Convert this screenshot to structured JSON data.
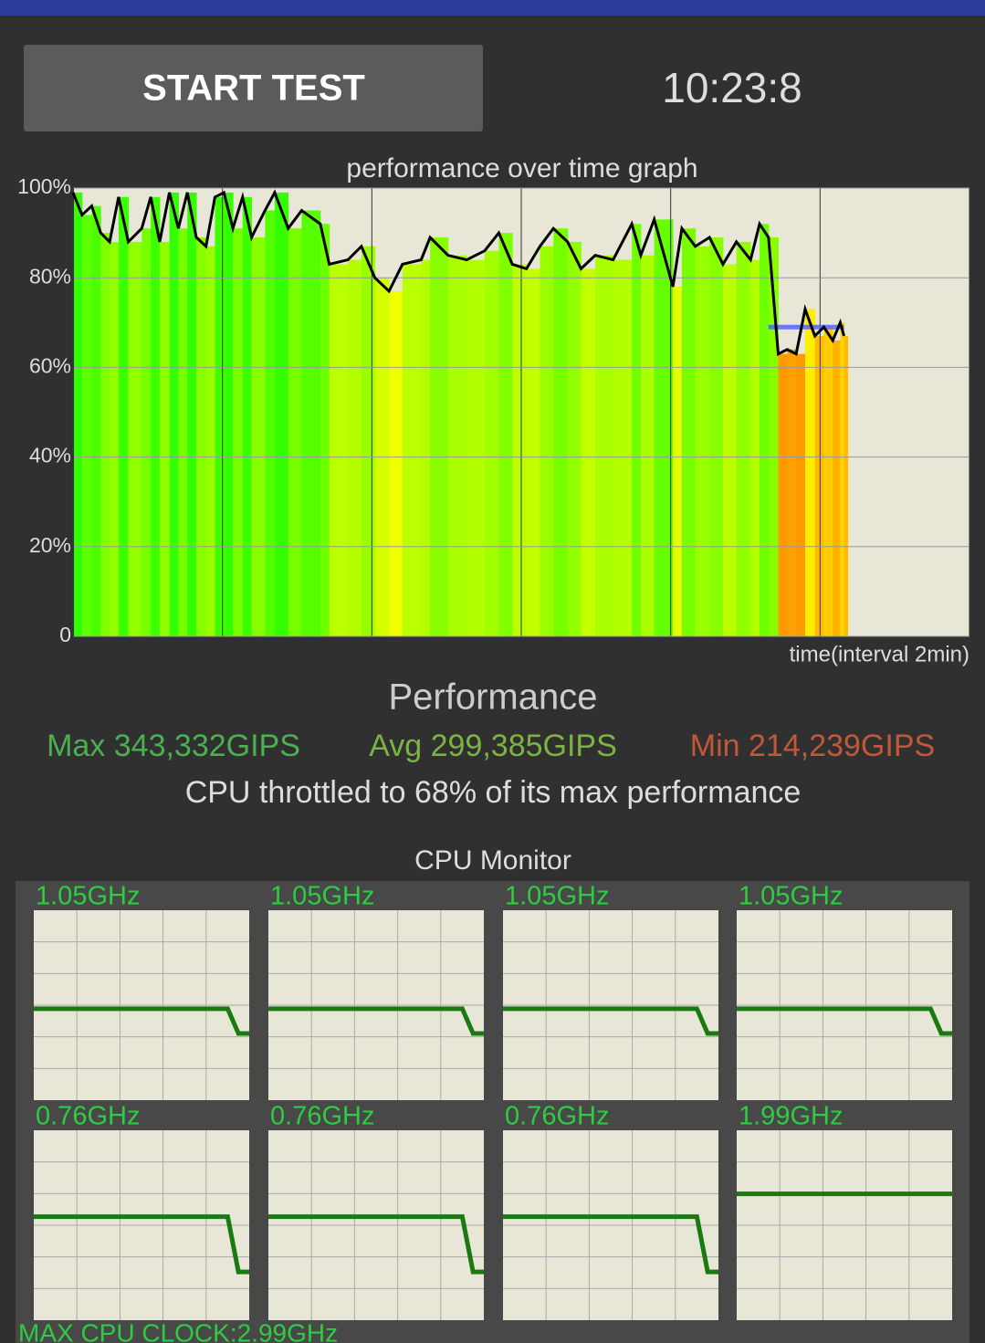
{
  "header": {
    "button": "START TEST",
    "time": "10:23:8"
  },
  "graph": {
    "type": "line",
    "title": "performance over time graph",
    "x_label": "time(interval 2min)",
    "x": [
      0,
      0.12,
      0.25,
      0.37,
      0.49,
      0.61,
      0.74,
      0.92,
      1.04,
      1.16,
      1.29,
      1.41,
      1.53,
      1.65,
      1.78,
      1.9,
      2.02,
      2.14,
      2.27,
      2.39,
      2.57,
      2.7,
      2.88,
      3.06,
      3.31,
      3.43,
      3.68,
      3.86,
      4.04,
      4.23,
      4.41,
      4.66,
      4.78,
      5.02,
      5.27,
      5.51,
      5.7,
      5.88,
      6.07,
      6.25,
      6.43,
      6.62,
      6.8,
      6.99,
      7.23,
      7.48,
      7.6,
      7.78,
      8.03,
      8.15,
      8.33,
      8.52,
      8.7,
      8.88,
      9.07,
      9.19,
      9.31,
      9.44,
      9.56,
      9.68,
      9.8,
      9.93,
      10.05,
      10.17,
      10.27,
      10.32
    ],
    "values": [
      99,
      94,
      96,
      90,
      88,
      98,
      88,
      91,
      98,
      88,
      99,
      91,
      99,
      89,
      87,
      98,
      99,
      91,
      98,
      89,
      95,
      99,
      91,
      95,
      92,
      83,
      84,
      87,
      80,
      77,
      83,
      84,
      89,
      85,
      84,
      86,
      90,
      83,
      82,
      87,
      91,
      88,
      82,
      85,
      84,
      92,
      85,
      93,
      78,
      91,
      87,
      89,
      83,
      88,
      84,
      92,
      89,
      63,
      64,
      63,
      73,
      67,
      69,
      66,
      70,
      67
    ],
    "color": "#000000",
    "xlim": [
      0,
      12
    ],
    "xticks": [
      2,
      4,
      6,
      8,
      10,
      12
    ],
    "ylim": [
      0,
      100
    ],
    "yticks": [
      0,
      {
        "value": 20,
        "label": "20%"
      },
      {
        "value": 40,
        "label": "40%"
      },
      {
        "value": 60,
        "label": "60%"
      },
      {
        "value": 80,
        "label": "80%"
      },
      {
        "value": 100,
        "label": "100%"
      }
    ],
    "grid": true,
    "reference_line": {
      "value": 69,
      "start": 9.31,
      "color": "#4a5cff"
    }
  },
  "performance": {
    "title": "Performance",
    "max": "Max 343,332GIPS",
    "avg": "Avg 299,385GIPS",
    "min": "Min 214,239GIPS",
    "note": "CPU throttled to 68% of its max performance"
  },
  "cpu_monitor": {
    "title": "CPU Monitor",
    "ylim": [
      0,
      2.99
    ],
    "color": "#1a7a12",
    "cores": [
      {
        "label": "1.05GHz",
        "values": [
          1.44,
          1.44,
          1.44,
          1.44,
          1.44,
          1.44,
          1.44,
          1.44,
          1.44,
          1.44,
          1.44,
          1.44,
          1.44,
          1.44,
          1.44,
          1.44,
          1.44,
          1.44,
          1.44,
          1.05,
          1.05
        ]
      },
      {
        "label": "1.05GHz",
        "values": [
          1.44,
          1.44,
          1.44,
          1.44,
          1.44,
          1.44,
          1.44,
          1.44,
          1.44,
          1.44,
          1.44,
          1.44,
          1.44,
          1.44,
          1.44,
          1.44,
          1.44,
          1.44,
          1.44,
          1.05,
          1.05
        ]
      },
      {
        "label": "1.05GHz",
        "values": [
          1.44,
          1.44,
          1.44,
          1.44,
          1.44,
          1.44,
          1.44,
          1.44,
          1.44,
          1.44,
          1.44,
          1.44,
          1.44,
          1.44,
          1.44,
          1.44,
          1.44,
          1.44,
          1.44,
          1.05,
          1.05
        ]
      },
      {
        "label": "1.05GHz",
        "values": [
          1.44,
          1.44,
          1.44,
          1.44,
          1.44,
          1.44,
          1.44,
          1.44,
          1.44,
          1.44,
          1.44,
          1.44,
          1.44,
          1.44,
          1.44,
          1.44,
          1.44,
          1.44,
          1.44,
          1.05,
          1.05
        ]
      },
      {
        "label": "0.76GHz",
        "values": [
          1.63,
          1.63,
          1.63,
          1.63,
          1.63,
          1.63,
          1.63,
          1.63,
          1.63,
          1.63,
          1.63,
          1.63,
          1.63,
          1.63,
          1.63,
          1.63,
          1.63,
          1.63,
          1.63,
          0.76,
          0.76
        ]
      },
      {
        "label": "0.76GHz",
        "values": [
          1.63,
          1.63,
          1.63,
          1.63,
          1.63,
          1.63,
          1.63,
          1.63,
          1.63,
          1.63,
          1.63,
          1.63,
          1.63,
          1.63,
          1.63,
          1.63,
          1.63,
          1.63,
          1.63,
          0.76,
          0.76
        ]
      },
      {
        "label": "0.76GHz",
        "values": [
          1.63,
          1.63,
          1.63,
          1.63,
          1.63,
          1.63,
          1.63,
          1.63,
          1.63,
          1.63,
          1.63,
          1.63,
          1.63,
          1.63,
          1.63,
          1.63,
          1.63,
          1.63,
          1.63,
          0.76,
          0.76
        ]
      },
      {
        "label": "1.99GHz",
        "values": [
          1.99,
          1.99,
          1.99,
          1.99,
          1.99,
          1.99,
          1.99,
          1.99,
          1.99,
          1.99,
          1.99,
          1.99,
          1.99,
          1.99,
          1.99,
          1.99,
          1.99,
          1.99,
          1.99,
          1.99,
          1.99
        ]
      }
    ],
    "max_clock": "MAX CPU CLOCK:2.99GHz"
  }
}
